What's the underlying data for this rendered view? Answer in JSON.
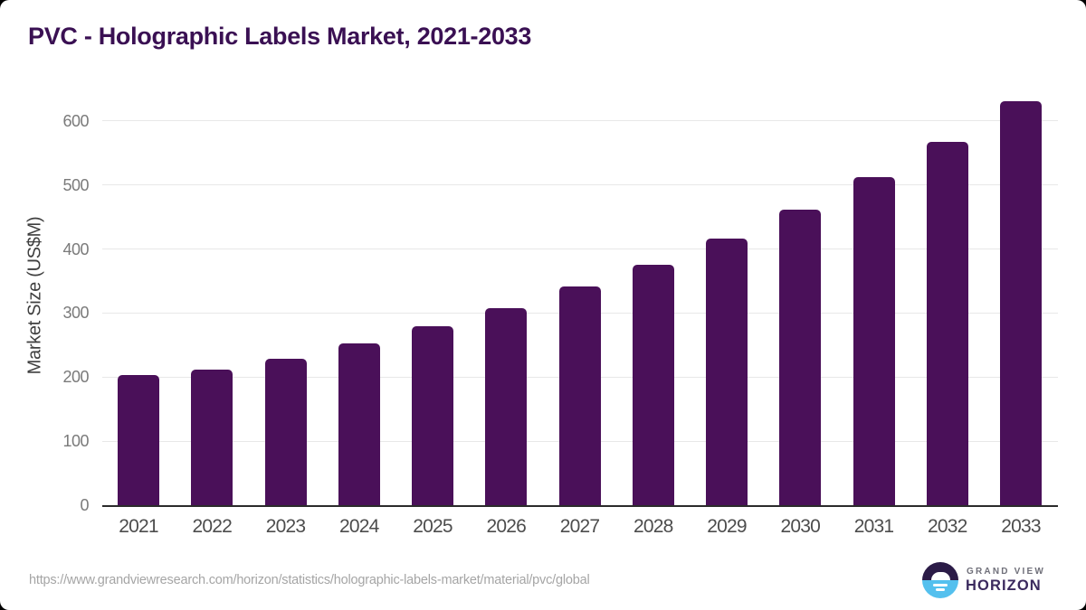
{
  "chart_data": {
    "type": "bar",
    "title": "PVC - Holographic Labels Market, 2021-2033",
    "xlabel": "",
    "ylabel": "Market Size (US$M)",
    "categories": [
      "2021",
      "2022",
      "2023",
      "2024",
      "2025",
      "2026",
      "2027",
      "2028",
      "2029",
      "2030",
      "2031",
      "2032",
      "2033"
    ],
    "values": [
      204,
      212,
      229,
      253,
      279,
      308,
      341,
      376,
      416,
      461,
      512,
      568,
      631
    ],
    "ylim": [
      0,
      655
    ],
    "yticks": [
      0,
      100,
      200,
      300,
      400,
      500,
      600
    ],
    "grid": "horizontal",
    "legend": "none",
    "bar_color": "#4a1059"
  },
  "colors": {
    "title_text": "#3a1053",
    "bar": "#4a1059",
    "gridline": "#e8e8e8",
    "axis_line": "#2b2b2b",
    "x_tick_text": "#4d4d4d",
    "y_tick_text": "#7a7a7a",
    "source_text": "#a5a5a5",
    "logo_dark": "#2b1b47",
    "logo_blue": "#54c0ee",
    "logo_title_text": "#3b2a5e",
    "logo_subtitle_text": "#70707a"
  },
  "footer": {
    "source_url": "https://www.grandviewresearch.com/horizon/statistics/holographic-labels-market/material/pvc/global",
    "logo": {
      "top_text": "GRAND VIEW",
      "bottom_text": "HORIZON"
    }
  }
}
